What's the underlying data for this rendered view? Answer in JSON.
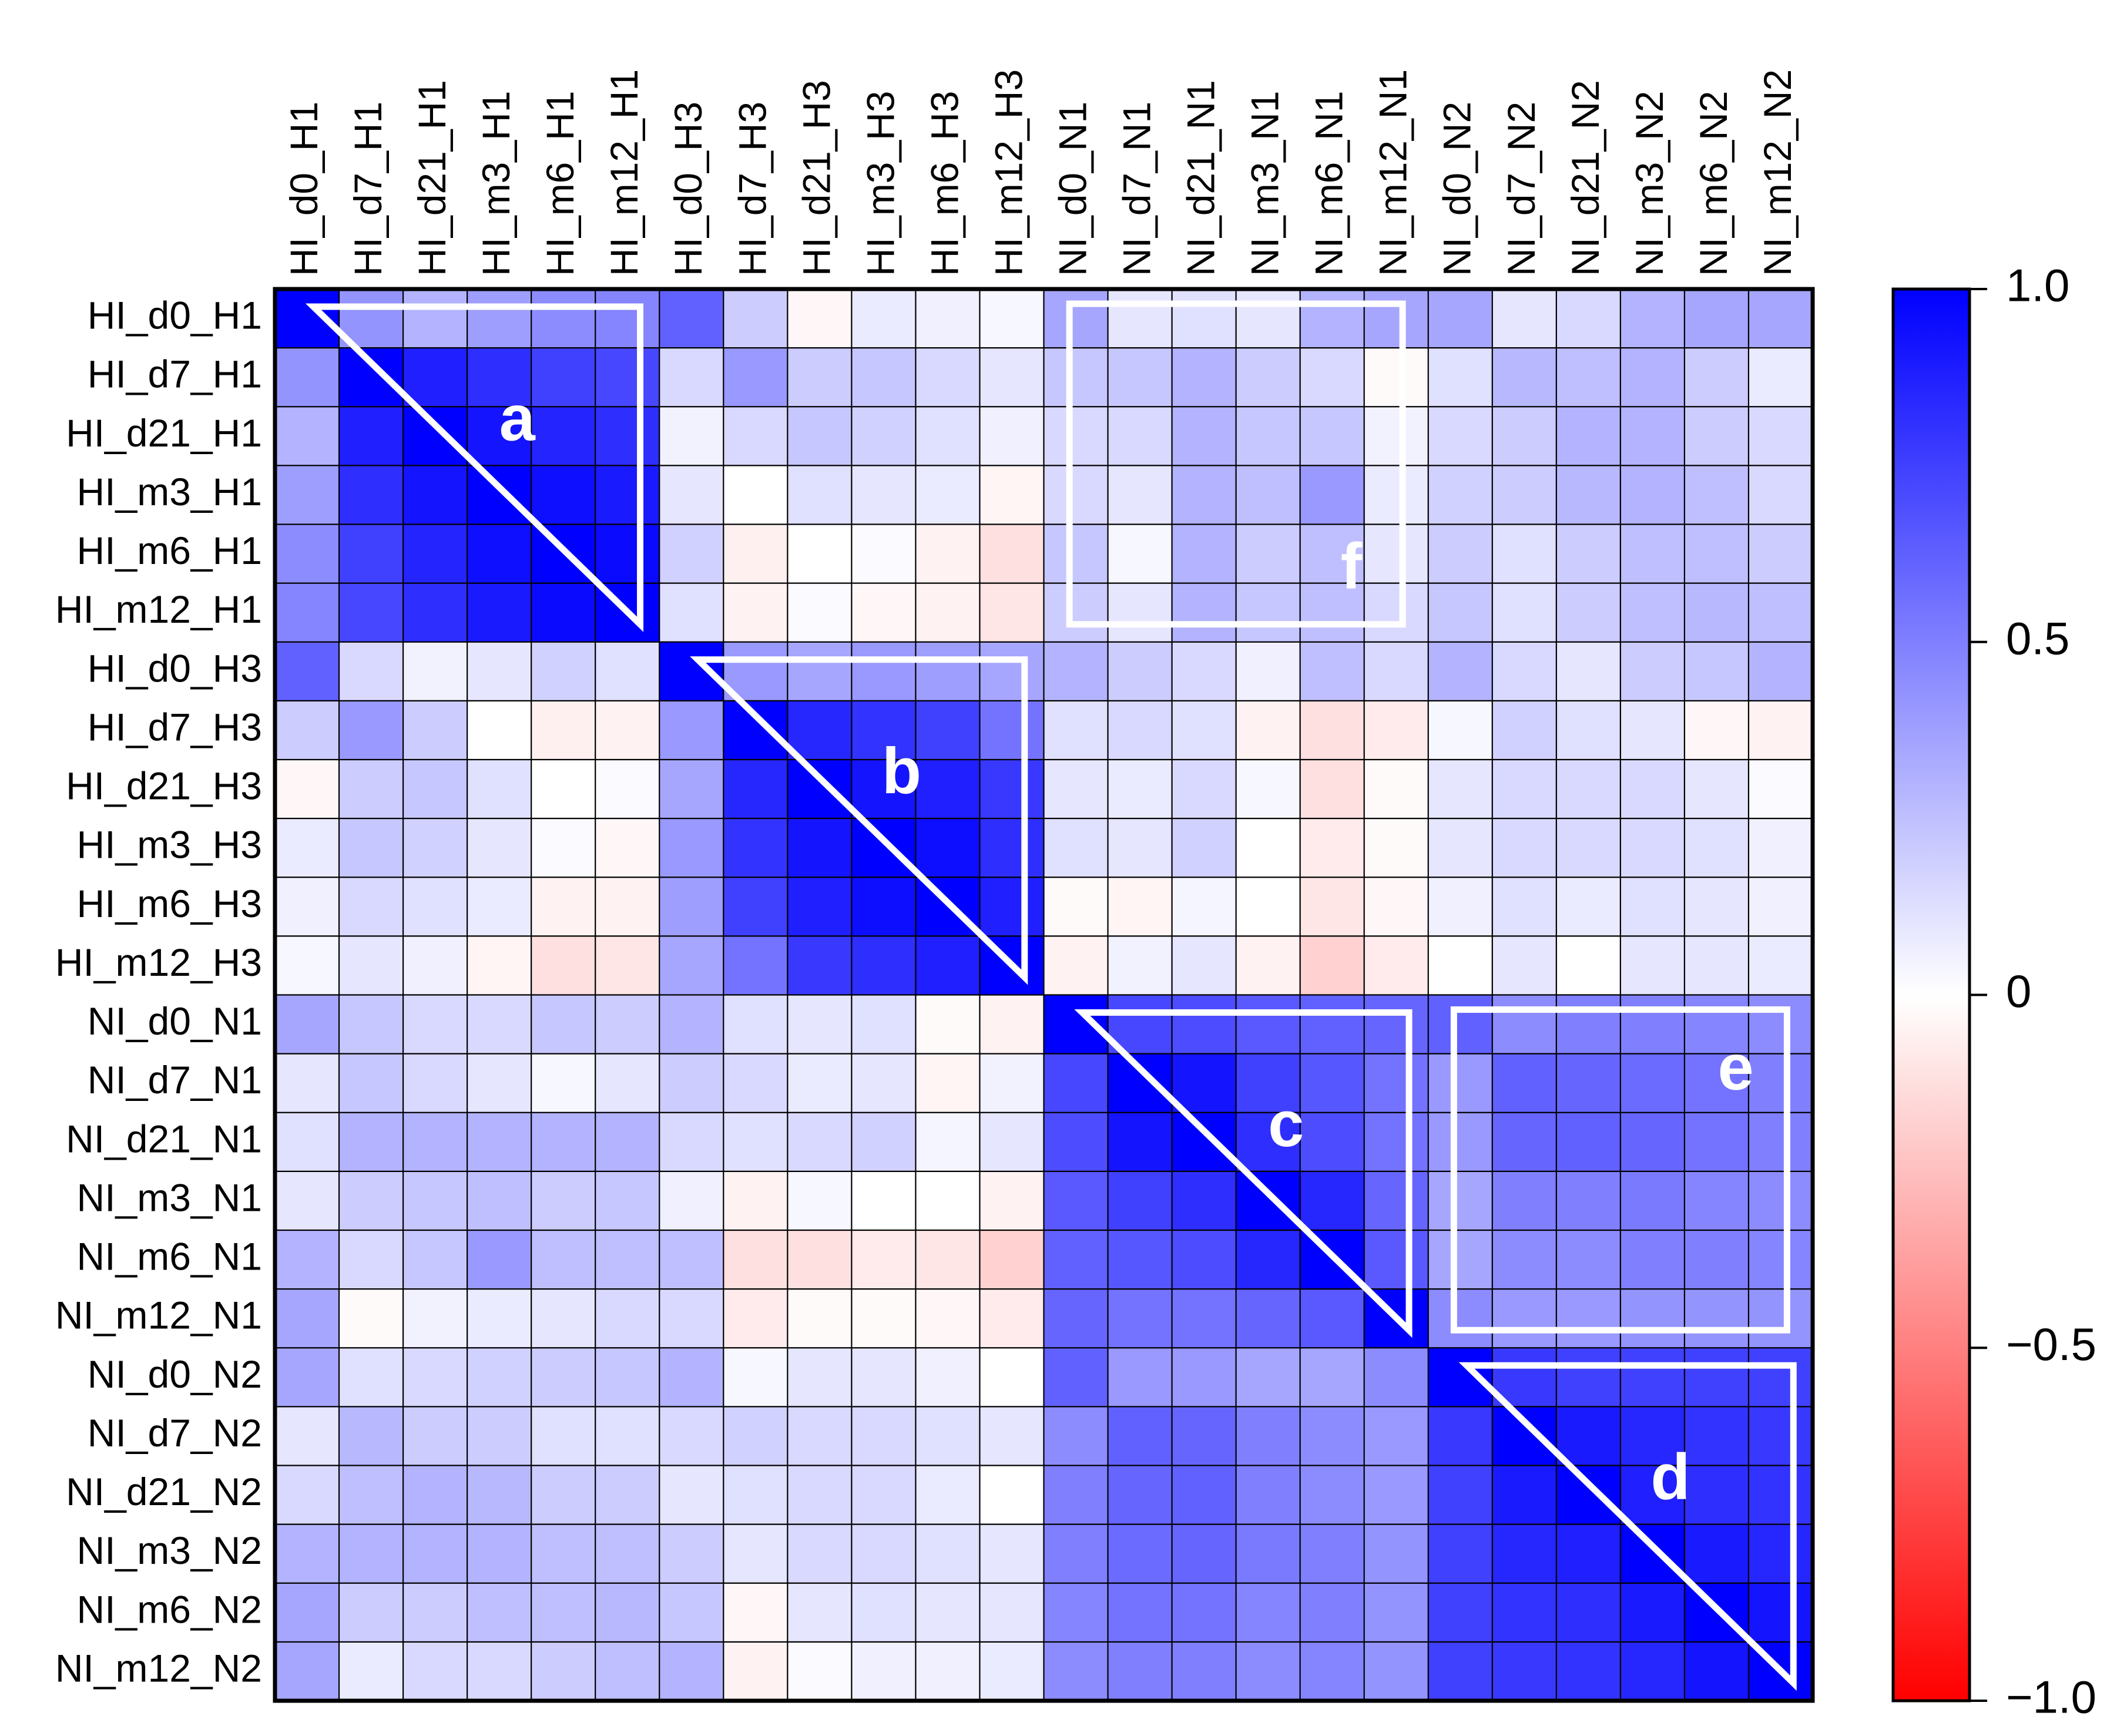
{
  "chart_data": {
    "type": "heatmap",
    "title": "",
    "labels": [
      "HI_d0_H1",
      "HI_d7_H1",
      "HI_d21_H1",
      "HI_m3_H1",
      "HI_m6_H1",
      "HI_m12_H1",
      "HI_d0_H3",
      "HI_d7_H3",
      "HI_d21_H3",
      "HI_m3_H3",
      "HI_m6_H3",
      "HI_m12_H3",
      "NI_d0_N1",
      "NI_d7_N1",
      "NI_d21_N1",
      "NI_m3_N1",
      "NI_m6_N1",
      "NI_m12_N1",
      "NI_d0_N2",
      "NI_d7_N2",
      "NI_d21_N2",
      "NI_m3_N2",
      "NI_m6_N2",
      "NI_m12_N2"
    ],
    "values": [
      [
        1.0,
        0.42,
        0.3,
        0.38,
        0.45,
        0.48,
        0.62,
        0.2,
        -0.03,
        0.08,
        0.06,
        0.03,
        0.35,
        0.1,
        0.12,
        0.1,
        0.3,
        0.35,
        0.35,
        0.1,
        0.15,
        0.3,
        0.35,
        0.35
      ],
      [
        0.42,
        1.0,
        0.88,
        0.82,
        0.75,
        0.72,
        0.15,
        0.4,
        0.2,
        0.22,
        0.15,
        0.1,
        0.22,
        0.22,
        0.3,
        0.2,
        0.15,
        -0.02,
        0.12,
        0.28,
        0.25,
        0.3,
        0.2,
        0.08
      ],
      [
        0.3,
        0.88,
        1.0,
        0.92,
        0.86,
        0.82,
        0.05,
        0.15,
        0.22,
        0.18,
        0.12,
        0.06,
        0.15,
        0.15,
        0.3,
        0.22,
        0.22,
        0.05,
        0.15,
        0.2,
        0.3,
        0.3,
        0.2,
        0.15
      ],
      [
        0.38,
        0.82,
        0.92,
        1.0,
        0.94,
        0.9,
        0.1,
        0.0,
        0.12,
        0.1,
        0.08,
        -0.04,
        0.15,
        0.1,
        0.3,
        0.25,
        0.4,
        0.08,
        0.18,
        0.2,
        0.28,
        0.3,
        0.25,
        0.15
      ],
      [
        0.45,
        0.75,
        0.86,
        0.94,
        1.0,
        0.96,
        0.18,
        -0.06,
        0.0,
        0.02,
        -0.05,
        -0.12,
        0.22,
        0.03,
        0.3,
        0.2,
        0.25,
        0.1,
        0.2,
        0.12,
        0.2,
        0.25,
        0.25,
        0.2
      ],
      [
        0.48,
        0.72,
        0.82,
        0.9,
        0.96,
        1.0,
        0.12,
        -0.05,
        0.02,
        -0.03,
        -0.05,
        -0.1,
        0.2,
        0.1,
        0.3,
        0.22,
        0.25,
        0.15,
        0.22,
        0.12,
        0.2,
        0.25,
        0.28,
        0.25
      ],
      [
        0.62,
        0.15,
        0.05,
        0.1,
        0.18,
        0.12,
        1.0,
        0.4,
        0.35,
        0.4,
        0.38,
        0.35,
        0.3,
        0.2,
        0.15,
        0.06,
        0.25,
        0.15,
        0.3,
        0.15,
        0.1,
        0.2,
        0.22,
        0.3
      ],
      [
        0.2,
        0.4,
        0.2,
        0.0,
        -0.06,
        -0.05,
        0.4,
        1.0,
        0.85,
        0.8,
        0.75,
        0.55,
        0.12,
        0.15,
        0.12,
        -0.05,
        -0.12,
        -0.08,
        0.03,
        0.18,
        0.12,
        0.1,
        -0.03,
        -0.05
      ],
      [
        -0.03,
        0.2,
        0.22,
        0.12,
        0.0,
        0.02,
        0.35,
        0.85,
        1.0,
        0.92,
        0.88,
        0.78,
        0.1,
        0.08,
        0.15,
        0.03,
        -0.12,
        -0.02,
        0.1,
        0.15,
        0.15,
        0.15,
        0.1,
        0.02
      ],
      [
        0.08,
        0.22,
        0.18,
        0.1,
        0.02,
        -0.03,
        0.4,
        0.8,
        0.92,
        1.0,
        0.95,
        0.82,
        0.12,
        0.1,
        0.18,
        0.0,
        -0.08,
        -0.02,
        0.1,
        0.15,
        0.15,
        0.15,
        0.12,
        0.06
      ],
      [
        0.06,
        0.15,
        0.12,
        0.08,
        -0.05,
        -0.05,
        0.38,
        0.75,
        0.88,
        0.95,
        1.0,
        0.88,
        -0.02,
        -0.04,
        0.04,
        0.0,
        -0.1,
        -0.03,
        0.06,
        0.12,
        0.08,
        0.12,
        0.1,
        0.06
      ],
      [
        0.03,
        0.1,
        0.06,
        -0.04,
        -0.12,
        -0.1,
        0.35,
        0.55,
        0.78,
        0.82,
        0.88,
        1.0,
        -0.05,
        0.05,
        0.1,
        -0.05,
        -0.18,
        -0.08,
        0.0,
        0.1,
        0.0,
        0.1,
        0.1,
        0.08
      ],
      [
        0.35,
        0.22,
        0.15,
        0.15,
        0.22,
        0.2,
        0.3,
        0.12,
        0.1,
        0.12,
        -0.02,
        -0.05,
        1.0,
        0.72,
        0.7,
        0.65,
        0.62,
        0.6,
        0.62,
        0.45,
        0.5,
        0.5,
        0.48,
        0.45
      ],
      [
        0.1,
        0.22,
        0.15,
        0.1,
        0.03,
        0.1,
        0.2,
        0.15,
        0.08,
        0.1,
        -0.04,
        0.05,
        0.72,
        1.0,
        0.92,
        0.75,
        0.66,
        0.55,
        0.4,
        0.62,
        0.6,
        0.58,
        0.55,
        0.5
      ],
      [
        0.12,
        0.3,
        0.3,
        0.3,
        0.3,
        0.3,
        0.15,
        0.12,
        0.15,
        0.18,
        0.04,
        0.1,
        0.7,
        0.92,
        1.0,
        0.82,
        0.7,
        0.55,
        0.4,
        0.6,
        0.62,
        0.6,
        0.55,
        0.5
      ],
      [
        0.1,
        0.2,
        0.22,
        0.25,
        0.2,
        0.22,
        0.06,
        -0.05,
        0.03,
        0.0,
        0.0,
        -0.05,
        0.65,
        0.75,
        0.82,
        1.0,
        0.85,
        0.6,
        0.35,
        0.5,
        0.5,
        0.52,
        0.48,
        0.45
      ],
      [
        0.3,
        0.15,
        0.22,
        0.4,
        0.25,
        0.25,
        0.25,
        -0.12,
        -0.12,
        -0.08,
        -0.1,
        -0.18,
        0.62,
        0.66,
        0.7,
        0.85,
        1.0,
        0.65,
        0.35,
        0.45,
        0.45,
        0.5,
        0.5,
        0.48
      ],
      [
        0.35,
        -0.02,
        0.05,
        0.08,
        0.1,
        0.15,
        0.15,
        -0.08,
        -0.02,
        -0.02,
        -0.03,
        -0.08,
        0.6,
        0.55,
        0.55,
        0.6,
        0.65,
        1.0,
        0.45,
        0.4,
        0.4,
        0.42,
        0.42,
        0.42
      ],
      [
        0.35,
        0.12,
        0.15,
        0.18,
        0.2,
        0.22,
        0.3,
        0.03,
        0.1,
        0.1,
        0.06,
        0.0,
        0.62,
        0.4,
        0.4,
        0.35,
        0.35,
        0.45,
        1.0,
        0.78,
        0.75,
        0.75,
        0.75,
        0.75
      ],
      [
        0.1,
        0.28,
        0.2,
        0.2,
        0.12,
        0.12,
        0.15,
        0.18,
        0.15,
        0.15,
        0.12,
        0.1,
        0.45,
        0.62,
        0.6,
        0.5,
        0.45,
        0.4,
        0.78,
        1.0,
        0.9,
        0.85,
        0.8,
        0.78
      ],
      [
        0.15,
        0.25,
        0.3,
        0.28,
        0.2,
        0.2,
        0.1,
        0.12,
        0.15,
        0.15,
        0.08,
        0.0,
        0.5,
        0.6,
        0.62,
        0.5,
        0.45,
        0.4,
        0.75,
        0.9,
        1.0,
        0.88,
        0.82,
        0.8
      ],
      [
        0.3,
        0.3,
        0.3,
        0.3,
        0.25,
        0.25,
        0.2,
        0.1,
        0.15,
        0.15,
        0.12,
        0.1,
        0.5,
        0.58,
        0.6,
        0.52,
        0.5,
        0.42,
        0.75,
        0.85,
        0.88,
        1.0,
        0.9,
        0.85
      ],
      [
        0.35,
        0.2,
        0.2,
        0.25,
        0.25,
        0.28,
        0.22,
        -0.03,
        0.1,
        0.12,
        0.1,
        0.1,
        0.48,
        0.55,
        0.55,
        0.48,
        0.5,
        0.42,
        0.75,
        0.8,
        0.82,
        0.9,
        1.0,
        0.92
      ],
      [
        0.35,
        0.08,
        0.15,
        0.15,
        0.2,
        0.25,
        0.3,
        -0.05,
        0.02,
        0.06,
        0.06,
        0.08,
        0.45,
        0.5,
        0.5,
        0.45,
        0.48,
        0.42,
        0.75,
        0.78,
        0.8,
        0.85,
        0.92,
        1.0
      ]
    ],
    "colorbar": {
      "min": -1.0,
      "max": 1.0,
      "ticks": [
        "1.0",
        "0.5",
        "0",
        "−0.5",
        "−1.0"
      ],
      "tick_values": [
        1.0,
        0.5,
        0,
        -0.5,
        -1.0
      ]
    },
    "colors": {
      "negative": "#ff0000",
      "neutral": "#ffffff",
      "positive": "#0000ff"
    },
    "annotations": [
      {
        "label": "a",
        "shape": "triangle",
        "rows": [
          0,
          5
        ],
        "cols": [
          0,
          5
        ]
      },
      {
        "label": "b",
        "shape": "triangle",
        "rows": [
          6,
          11
        ],
        "cols": [
          6,
          11
        ]
      },
      {
        "label": "c",
        "shape": "triangle",
        "rows": [
          12,
          17
        ],
        "cols": [
          12,
          17
        ]
      },
      {
        "label": "d",
        "shape": "triangle",
        "rows": [
          18,
          23
        ],
        "cols": [
          18,
          23
        ]
      },
      {
        "label": "e",
        "shape": "rectangle",
        "rows": [
          12,
          17
        ],
        "cols": [
          18,
          23
        ]
      },
      {
        "label": "f",
        "shape": "rectangle",
        "rows": [
          0,
          5
        ],
        "cols": [
          12,
          17
        ]
      }
    ]
  }
}
